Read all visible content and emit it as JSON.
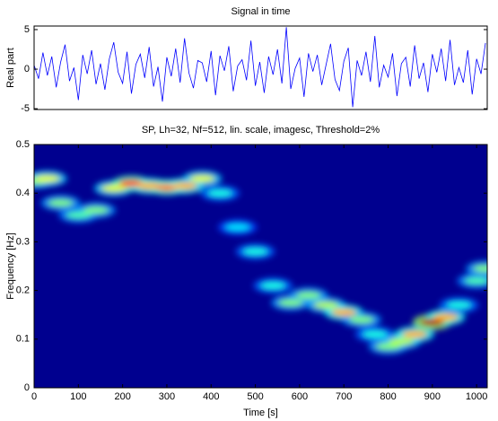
{
  "chart_data": [
    {
      "type": "line",
      "title": "Signal in time",
      "y_label": "Real part",
      "xlim": [
        0,
        1024
      ],
      "ylim": [
        -5.1,
        5.45
      ],
      "yticks": [
        -5,
        0,
        5
      ],
      "x": [
        0,
        10,
        20,
        30,
        40,
        50,
        60,
        70,
        80,
        90,
        100,
        110,
        120,
        130,
        140,
        150,
        160,
        170,
        180,
        190,
        200,
        210,
        220,
        230,
        240,
        250,
        260,
        270,
        280,
        290,
        300,
        310,
        320,
        330,
        340,
        350,
        360,
        370,
        380,
        390,
        400,
        410,
        420,
        430,
        440,
        450,
        460,
        470,
        480,
        490,
        500,
        510,
        520,
        530,
        540,
        550,
        560,
        570,
        580,
        590,
        600,
        610,
        620,
        630,
        640,
        650,
        660,
        670,
        680,
        690,
        700,
        710,
        720,
        730,
        740,
        750,
        760,
        770,
        780,
        790,
        800,
        810,
        820,
        830,
        840,
        850,
        860,
        870,
        880,
        890,
        900,
        910,
        920,
        930,
        940,
        950,
        960,
        970,
        980,
        990,
        1000,
        1010,
        1020
      ],
      "series": [
        {
          "color": "#0000ff",
          "values": [
            0.5,
            -1.2,
            2.1,
            -0.8,
            1.6,
            -2.3,
            0.9,
            3.1,
            -1.5,
            0.2,
            -3.9,
            1.8,
            -0.6,
            2.4,
            -1.9,
            0.7,
            -2.6,
            1.3,
            3.4,
            -0.4,
            -1.8,
            2.2,
            -3.1,
            0.6,
            1.9,
            -1.1,
            2.8,
            -2.2,
            0.3,
            -4.1,
            1.5,
            -0.9,
            2.6,
            -1.7,
            3.9,
            -0.5,
            -2.4,
            1.1,
            0.8,
            -1.6,
            2.3,
            -3.3,
            1.7,
            -0.2,
            2.9,
            -2.8,
            0.4,
            1.2,
            -1.4,
            3.6,
            -2.1,
            0.9,
            -3.0,
            1.6,
            -0.7,
            2.5,
            -1.8,
            5.3,
            -2.5,
            0.1,
            1.4,
            -3.5,
            2.0,
            -0.3,
            1.8,
            -2.0,
            0.6,
            3.2,
            -1.3,
            -2.7,
            1.0,
            2.7,
            -4.8,
            1.1,
            -0.8,
            2.2,
            -1.6,
            4.2,
            -2.3,
            0.5,
            -1.0,
            2.0,
            -3.4,
            0.7,
            1.5,
            -2.2,
            3.0,
            -1.2,
            0.8,
            -2.9,
            1.9,
            -0.4,
            2.6,
            -1.5,
            3.7,
            -2.0,
            0.2,
            -1.7,
            2.4,
            -3.2,
            1.3,
            -0.6,
            3.3
          ]
        }
      ]
    },
    {
      "type": "spectrogram",
      "title": "SP, Lh=32, Nf=512, lin. scale, imagesc, Threshold=2%",
      "x_label": "Time [s]",
      "y_label": "Frequency [Hz]",
      "background": "#00008f",
      "xlim": [
        0,
        1024
      ],
      "xticks": [
        0,
        100,
        200,
        300,
        400,
        500,
        600,
        700,
        800,
        900,
        1000
      ],
      "ylim": [
        0,
        0.5
      ],
      "yticks": [
        0,
        0.1,
        0.2,
        0.3,
        0.4,
        0.5
      ],
      "x": [
        0,
        30,
        60,
        100,
        140,
        180,
        220,
        260,
        300,
        340,
        380,
        420,
        460,
        500,
        540,
        580,
        620,
        660,
        700,
        740,
        770,
        800,
        830,
        860,
        900,
        930,
        960,
        1000,
        1020
      ],
      "frequency": [
        0.425,
        0.43,
        0.38,
        0.355,
        0.365,
        0.41,
        0.42,
        0.415,
        0.412,
        0.415,
        0.43,
        0.4,
        0.33,
        0.28,
        0.21,
        0.175,
        0.19,
        0.17,
        0.155,
        0.14,
        0.11,
        0.085,
        0.095,
        0.11,
        0.135,
        0.145,
        0.17,
        0.22,
        0.245
      ],
      "intensity": [
        0.5,
        0.6,
        0.5,
        0.45,
        0.5,
        0.6,
        0.8,
        0.7,
        0.75,
        0.7,
        0.6,
        0.4,
        0.35,
        0.4,
        0.4,
        0.5,
        0.5,
        0.55,
        0.7,
        0.5,
        0.4,
        0.5,
        0.55,
        0.7,
        0.95,
        0.7,
        0.4,
        0.45,
        0.5
      ]
    }
  ]
}
